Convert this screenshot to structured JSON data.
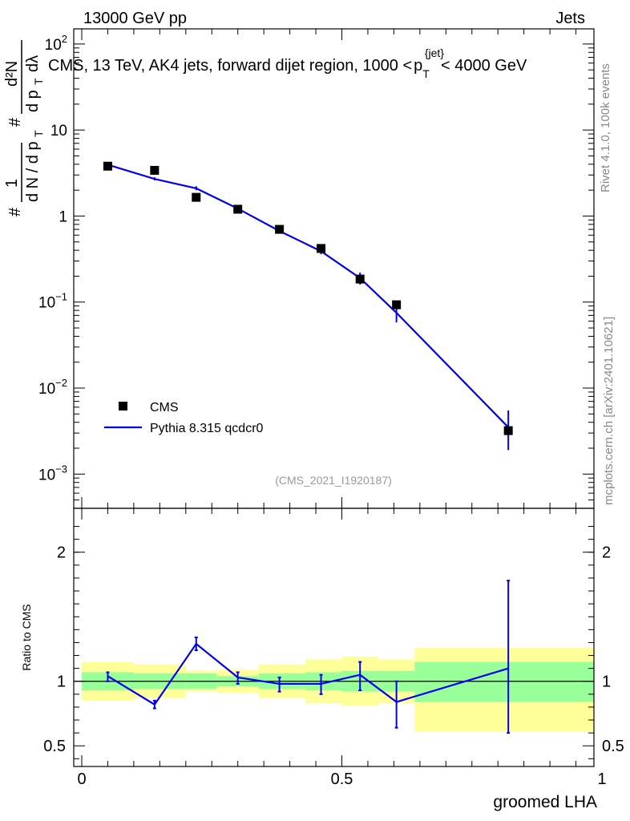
{
  "header": {
    "left": "13000 GeV pp",
    "right": "Jets"
  },
  "side_labels": {
    "rivet": "Rivet 4.1.0,  100k events",
    "mcplots": "mcplots.cern.ch [arXiv:2401.10621]"
  },
  "chart_data": [
    {
      "type": "scatter",
      "scale": "log",
      "title": "CMS, 13 TeV, AK4 jets, forward dijet region, 1000 < p_T^{jet} < 4000 GeV",
      "title_parts": {
        "prefix": "CMS, 13 TeV, AK4 jets, forward dijet region, 1000 <",
        "p": "p",
        "sub": "T",
        "sup": "{jet}",
        "suffix": "< 4000 GeV"
      },
      "ylabel_parts": [
        "#",
        "1",
        "d N / d p",
        "T",
        "#",
        "d²N",
        "d p",
        "T",
        "dλ"
      ],
      "watermark": "(CMS_2021_I1920187)",
      "xlim": [
        0,
        1
      ],
      "ylim": [
        0.0004,
        150
      ],
      "y_tick_labels": [
        {
          "value": 0.001,
          "base": "10",
          "exp": "−3"
        },
        {
          "value": 0.01,
          "base": "10",
          "exp": "−2"
        },
        {
          "value": 0.1,
          "base": "10",
          "exp": "−1"
        },
        {
          "value": 1,
          "base": "1",
          "exp": ""
        },
        {
          "value": 10,
          "base": "10",
          "exp": ""
        },
        {
          "value": 100,
          "base": "10",
          "exp": "2"
        }
      ],
      "bin_edges": [
        0,
        0.1,
        0.2,
        0.26,
        0.34,
        0.43,
        0.5,
        0.57,
        0.64,
        1.0
      ],
      "series": [
        {
          "name": "CMS",
          "style": "markers",
          "x": [
            0.05,
            0.14,
            0.22,
            0.3,
            0.38,
            0.46,
            0.535,
            0.605,
            0.82
          ],
          "y": [
            3.8,
            3.4,
            1.65,
            1.2,
            0.7,
            0.42,
            0.185,
            0.093,
            0.0032
          ]
        },
        {
          "name": "Pythia 8.315 qcdcr0",
          "style": "line",
          "color": "#0000ee",
          "x": [
            0.05,
            0.14,
            0.22,
            0.3,
            0.38,
            0.46,
            0.535,
            0.605,
            0.82
          ],
          "y": [
            3.95,
            2.7,
            2.1,
            1.22,
            0.67,
            0.39,
            0.19,
            0.075,
            0.0035
          ],
          "yerr_lo": [
            3.75,
            2.6,
            2.0,
            1.16,
            0.63,
            0.36,
            0.16,
            0.058,
            0.0019
          ],
          "yerr_hi": [
            4.15,
            2.82,
            2.22,
            1.3,
            0.72,
            0.42,
            0.22,
            0.092,
            0.0055
          ]
        }
      ],
      "legend": [
        "CMS",
        "Pythia 8.315 qcdcr0"
      ],
      "legend_position": "bottom-left"
    },
    {
      "type": "line",
      "scale": "linear",
      "xlabel": "groomed LHA",
      "ylabel": "Ratio to CMS",
      "xlim": [
        0,
        1
      ],
      "ylim": [
        0.34,
        2.34
      ],
      "x_tick_labels": [
        {
          "value": 0,
          "label": "0"
        },
        {
          "value": 0.5,
          "label": "0.5"
        },
        {
          "value": 1,
          "label": "1"
        }
      ],
      "y_tick_labels": [
        {
          "value": 0.5,
          "label": "0.5"
        },
        {
          "value": 1,
          "label": "1"
        },
        {
          "value": 2,
          "label": "2"
        }
      ],
      "bands": {
        "bin_edges": [
          0,
          0.1,
          0.2,
          0.26,
          0.34,
          0.43,
          0.5,
          0.57,
          0.64,
          1.0
        ],
        "inner_color": "#99ff99",
        "outer_color": "#ffff99",
        "inner_lo": [
          0.93,
          0.94,
          0.94,
          0.96,
          0.94,
          0.93,
          0.92,
          0.92,
          0.84
        ],
        "inner_hi": [
          1.07,
          1.06,
          1.06,
          1.04,
          1.06,
          1.07,
          1.08,
          1.08,
          1.15
        ],
        "outer_lo": [
          0.85,
          0.87,
          0.92,
          0.91,
          0.87,
          0.83,
          0.81,
          0.83,
          0.61
        ],
        "outer_hi": [
          1.15,
          1.13,
          1.08,
          1.09,
          1.13,
          1.17,
          1.19,
          1.17,
          1.26
        ]
      },
      "series": [
        {
          "name": "Pythia 8.315 qcdcr0",
          "color": "#0000ee",
          "x": [
            0.05,
            0.14,
            0.22,
            0.3,
            0.38,
            0.46,
            0.535,
            0.605,
            0.82
          ],
          "y": [
            1.04,
            0.82,
            1.29,
            1.03,
            0.98,
            0.98,
            1.05,
            0.84,
            1.1
          ],
          "yerr_lo": [
            1.0,
            0.79,
            1.24,
            0.98,
            0.92,
            0.9,
            0.93,
            0.64,
            0.6
          ],
          "yerr_hi": [
            1.07,
            0.85,
            1.34,
            1.07,
            1.03,
            1.05,
            1.15,
            1.0,
            1.78
          ]
        }
      ],
      "reference_line": 1.0
    }
  ]
}
